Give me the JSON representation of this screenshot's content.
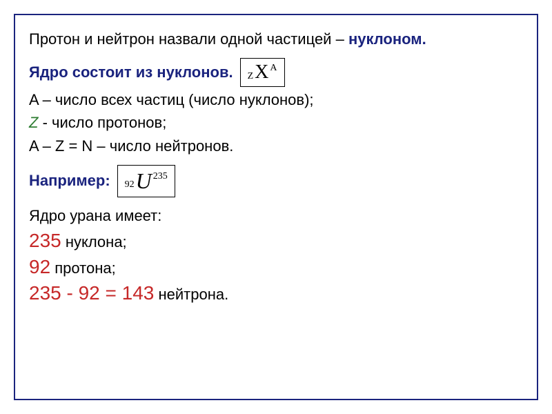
{
  "content": {
    "line1_part1": "Протон и нейтрон назвали одной частицей – ",
    "line1_part2": "нуклоном.",
    "line2": "Ядро состоит из нуклонов.",
    "notation": {
      "sub": "Z",
      "main": "X",
      "sup": "A"
    },
    "line3": "A – число всех частиц (число нуклонов);",
    "line4_pre": " ",
    "line4_sym": "Z",
    "line4_post": " - число протонов;",
    "line5": "A – Z = N – число нейтронов.",
    "line6": "Например:",
    "example": {
      "sub": "92",
      "main": "U",
      "sup": "235"
    },
    "line7": "Ядро урана имеет:",
    "res1_num": "235",
    "res1_txt": " нуклона;",
    "res2_num": "92",
    "res2_txt": " протона;",
    "res3_expr": "235 - 92 = 143",
    "res3_txt": " нейтрона."
  },
  "style": {
    "frame_border_color": "#1a237e",
    "blue_color": "#1a237e",
    "red_color": "#c62828",
    "text_color": "#000000",
    "background": "#ffffff",
    "base_fontsize": 22,
    "red_fontsize": 28,
    "formula_main_fontsize": 28,
    "formula_u_fontsize": 32,
    "formula_subsup_fontsize": 14
  }
}
